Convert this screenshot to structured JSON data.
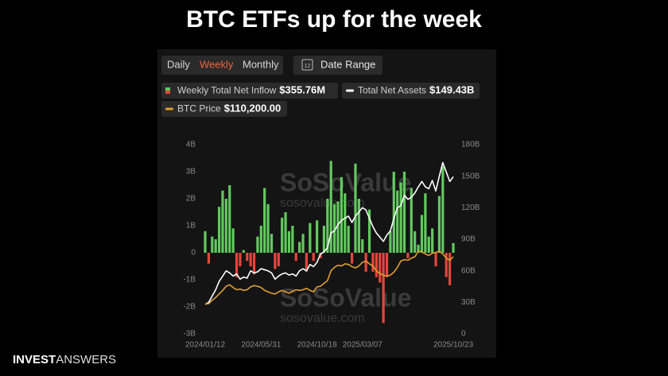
{
  "title": "BTC ETFs up for the week",
  "brand": [
    "INVEST",
    "ANSWERS"
  ],
  "controls": [
    "Daily",
    "Weekly",
    "Monthly"
  ],
  "selected_control": 1,
  "date_range": "Date Range",
  "date_icon": "12",
  "watermark": [
    "SoSoValue",
    "sosovalue.com"
  ],
  "chart_data": {
    "type": "bar",
    "categories": [
      "2024/01/12",
      null,
      null,
      null,
      null,
      null,
      null,
      null,
      null,
      null,
      null,
      null,
      null,
      null,
      null,
      null,
      "2024/05/31",
      null,
      null,
      null,
      null,
      null,
      null,
      null,
      null,
      null,
      null,
      null,
      null,
      null,
      null,
      null,
      "2024/10/18",
      null,
      null,
      null,
      null,
      null,
      null,
      null,
      null,
      null,
      null,
      null,
      null,
      "2025/03/07",
      null,
      null,
      null,
      null,
      null,
      null,
      null,
      null,
      null,
      null,
      null,
      null,
      null,
      null,
      null,
      null,
      null,
      null,
      null,
      null,
      null,
      null,
      null,
      null,
      null,
      "2025/10/23"
    ],
    "series": [
      {
        "name": "Weekly Total Net Inflow",
        "value_label": "$355.76M",
        "type": "bar",
        "color": "#62c95f",
        "negative_color": "#e5463d",
        "values": [
          0.8,
          -0.4,
          0.6,
          0.5,
          1.7,
          2.3,
          2.0,
          2.5,
          0.9,
          -0.9,
          -0.5,
          0.1,
          -0.3,
          -0.5,
          -0.8,
          0.6,
          1.0,
          2.4,
          1.8,
          0.7,
          -0.6,
          -0.5,
          1.3,
          1.5,
          0.8,
          1.0,
          -0.3,
          0.4,
          0.7,
          -0.7,
          1.1,
          -0.3,
          1.2,
          -0.2,
          1.0,
          2.0,
          3.4,
          1.8,
          1.9,
          2.8,
          2.2,
          1.0,
          -0.4,
          3.3,
          2.0,
          0.5,
          -0.7,
          1.6,
          -0.7,
          -0.9,
          -1.1,
          -2.6,
          -0.9,
          0.8,
          3.0,
          2.3,
          2.6,
          3.0,
          -0.2,
          2.4,
          0.8,
          0.3,
          1.4,
          2.2,
          0.6,
          0.9,
          -0.5,
          2.1,
          3.2,
          -0.9,
          -1.2,
          0.36
        ]
      },
      {
        "name": "Total Net Assets",
        "value_label": "$149.43B",
        "type": "line",
        "axis": "y2",
        "color": "#ffffff",
        "values": [
          28,
          30,
          36,
          42,
          50,
          55,
          60,
          58,
          55,
          57,
          52,
          54,
          53,
          60,
          58,
          59,
          62,
          61,
          60,
          58,
          52,
          55,
          57,
          58,
          56,
          57,
          55,
          60,
          62,
          60,
          66,
          64,
          68,
          76,
          78,
          82,
          96,
          98,
          104,
          108,
          110,
          112,
          106,
          112,
          116,
          120,
          118,
          110,
          102,
          96,
          92,
          88,
          94,
          98,
          110,
          120,
          122,
          132,
          128,
          130,
          134,
          140,
          145,
          140,
          138,
          146,
          136,
          150,
          163,
          154,
          145,
          149.43
        ]
      },
      {
        "name": "BTC Price",
        "value_label": "$110,200.00",
        "type": "line",
        "axis": "y3",
        "color": "#e0a030",
        "values": [
          42500,
          43000,
          48000,
          52000,
          57000,
          62000,
          68000,
          70000,
          66000,
          63000,
          64000,
          62000,
          63000,
          67000,
          69000,
          68000,
          66000,
          62000,
          60000,
          58000,
          57000,
          60000,
          62000,
          60000,
          58000,
          61000,
          63000,
          62000,
          63000,
          65000,
          62000,
          60000,
          67000,
          68000,
          72000,
          76000,
          90000,
          95000,
          98000,
          97000,
          100000,
          99000,
          96000,
          94000,
          97000,
          102000,
          104000,
          100000,
          97000,
          90000,
          86000,
          84000,
          82000,
          84000,
          88000,
          95000,
          104000,
          106000,
          105000,
          108000,
          110000,
          118000,
          117000,
          114000,
          112000,
          115000,
          116000,
          118000,
          114000,
          108000,
          105000,
          110200
        ]
      }
    ],
    "ylim": [
      -3,
      4
    ],
    "yticks": [
      {
        "value": -3,
        "label": "-3B"
      },
      {
        "value": -2,
        "label": "-2B"
      },
      {
        "value": -1,
        "label": "-1B"
      },
      0,
      {
        "value": 1,
        "label": "1B"
      },
      {
        "value": 2,
        "label": "2B"
      },
      {
        "value": 3,
        "label": "3B"
      },
      {
        "value": 4,
        "label": "4B"
      }
    ],
    "y2lim": [
      0,
      180
    ],
    "y2ticks": [
      0,
      {
        "value": 30,
        "label": "30B"
      },
      {
        "value": 60,
        "label": "60B"
      },
      {
        "value": 90,
        "label": "90B"
      },
      {
        "value": 120,
        "label": "120B"
      },
      {
        "value": 150,
        "label": "150B"
      },
      {
        "value": 180,
        "label": "180B"
      }
    ],
    "y3lim": [
      0,
      270000
    ],
    "grid": false
  }
}
